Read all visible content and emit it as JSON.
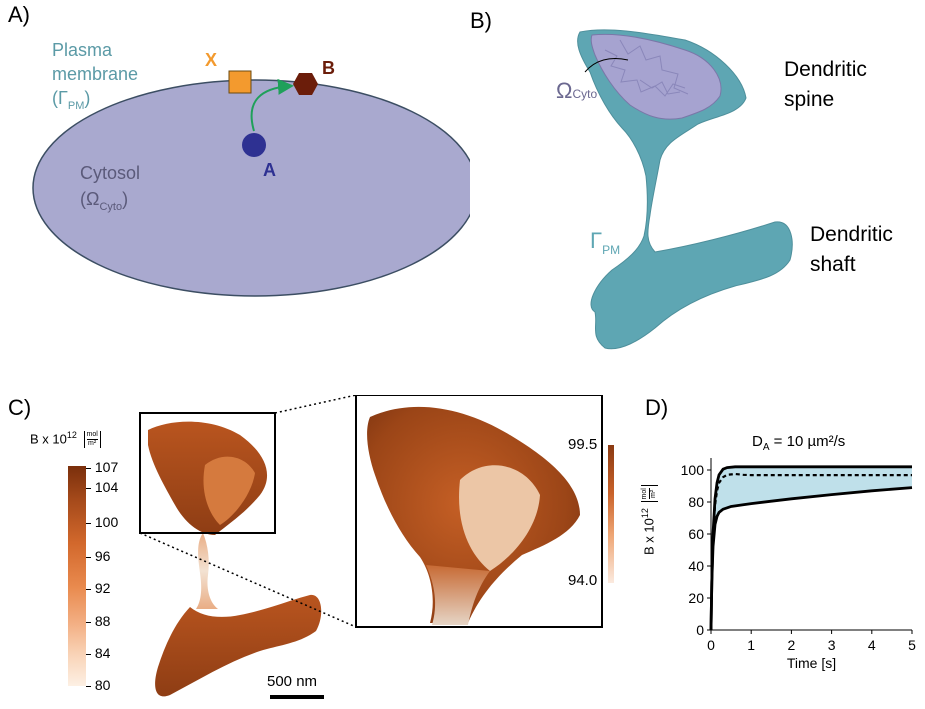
{
  "panelA": {
    "letter": "A)",
    "membrane_line1": "Plasma",
    "membrane_line2": "membrane",
    "membrane_symbol": "(Γ",
    "membrane_sub": "PM",
    "membrane_close": ")",
    "cytosol_label": "Cytosol",
    "cytosol_symbol": "(Ω",
    "cytosol_sub": "Cyto",
    "cytosol_close": ")",
    "species_x": "X",
    "species_b": "B",
    "species_a": "A",
    "colors": {
      "cell": "#a9a9cf",
      "x": "#f39a2e",
      "b": "#6b1d0a",
      "a": "#2e3192",
      "arrow": "#1fa05a",
      "membrane_text": "#5b9aa6"
    }
  },
  "panelB": {
    "letter": "B)",
    "omega_symbol": "Ω",
    "omega_sub": "Cyto",
    "gamma_symbol": "Γ",
    "gamma_sub": "PM",
    "spine_line1": "Dendritic",
    "spine_line2": "spine",
    "shaft_line1": "Dendritic",
    "shaft_line2": "shaft",
    "colors": {
      "surface": "#5ea6b3",
      "cyto": "#a6a3d0"
    }
  },
  "panelC": {
    "letter": "C)",
    "colorbar_label": "B x 10",
    "colorbar_exp": "12",
    "colorbar_unit_num": "mol",
    "colorbar_unit_den": "m²",
    "colorbar_ticks": [
      "107",
      "104",
      "100",
      "96",
      "92",
      "88",
      "84",
      "80"
    ],
    "inset_max": "99.5",
    "inset_min": "94.0",
    "scalebar": "500 nm",
    "colors": {
      "high": "#8a3a12",
      "mid": "#e07a38",
      "low": "#fbe7d6"
    }
  },
  "panelD": {
    "letter": "D)",
    "chart_data": {
      "type": "line",
      "title": "D",
      "title_sub": "A",
      "title_rest": " = 10 µm²/s",
      "xlabel": "Time [s]",
      "ylabel": "B x 10",
      "ylabel_exp": "12",
      "ylabel_unit_num": "mol",
      "ylabel_unit_den": "m²",
      "xlim": [
        0,
        5
      ],
      "ylim": [
        0,
        105
      ],
      "xticks": [
        "0",
        "1",
        "2",
        "3",
        "4",
        "5"
      ],
      "yticks": [
        "0",
        "20",
        "40",
        "60",
        "80",
        "100"
      ],
      "series": [
        {
          "style": "solid",
          "x": [
            0,
            0.02,
            0.05,
            0.1,
            0.15,
            0.2,
            0.3,
            0.4,
            0.6,
            1,
            2,
            3,
            4,
            5
          ],
          "y": [
            0,
            30,
            60,
            82,
            92,
            97,
            100.5,
            101.5,
            102,
            102,
            102,
            102,
            102,
            102
          ]
        },
        {
          "style": "dashed",
          "x": [
            0,
            0.02,
            0.05,
            0.1,
            0.15,
            0.2,
            0.3,
            0.4,
            0.6,
            0.8,
            1,
            2,
            3,
            4,
            5
          ],
          "y": [
            0,
            30,
            58,
            78,
            87,
            92,
            95.5,
            97,
            97.5,
            97,
            96.8,
            96.8,
            96.8,
            96.8,
            96.8
          ]
        },
        {
          "style": "solid",
          "x": [
            0,
            0.02,
            0.05,
            0.1,
            0.15,
            0.2,
            0.3,
            0.5,
            0.8,
            1,
            1.5,
            2,
            3,
            4,
            5
          ],
          "y": [
            0,
            30,
            52,
            66,
            71,
            73.5,
            75.5,
            77.2,
            78.3,
            79,
            80.5,
            82,
            84.6,
            87,
            89
          ]
        }
      ],
      "fill_between": "series 0 and 2",
      "colors": {
        "line": "#000000",
        "fill": "#bfe0ea"
      }
    }
  }
}
